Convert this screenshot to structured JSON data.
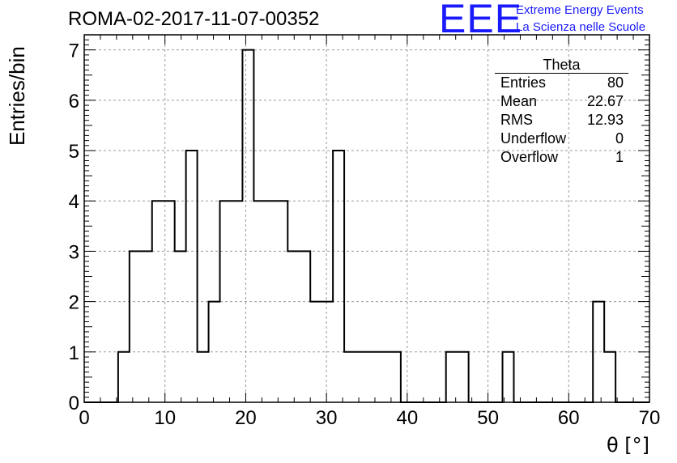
{
  "header": {
    "run_title": "ROMA-02-2017-11-07-00352"
  },
  "logo": {
    "mark": "EEE",
    "line1": "Extreme Energy Events",
    "line2": "La Scienza nelle Scuole",
    "color": "#1a1aff"
  },
  "stats": {
    "title": "Theta",
    "rows": [
      {
        "label": "Entries",
        "value": "80"
      },
      {
        "label": "Mean",
        "value": "22.67"
      },
      {
        "label": "RMS",
        "value": "12.93"
      },
      {
        "label": "Underflow",
        "value": "0"
      },
      {
        "label": "Overflow",
        "value": "1"
      }
    ]
  },
  "chart_data": {
    "type": "bar",
    "title": "ROMA-02-2017-11-07-00352",
    "xlabel": "θ [°]",
    "ylabel": "Entries/bin",
    "xlim": [
      0,
      70
    ],
    "ylim": [
      0,
      7.3
    ],
    "x_ticks": [
      0,
      10,
      20,
      30,
      40,
      50,
      60,
      70
    ],
    "y_ticks": [
      0,
      1,
      2,
      3,
      4,
      5,
      6,
      7
    ],
    "grid": true,
    "bin_width": 1.4,
    "bin_start": 0,
    "values": [
      0,
      0,
      0,
      1,
      3,
      3,
      4,
      4,
      3,
      5,
      1,
      2,
      4,
      4,
      7,
      4,
      4,
      4,
      3,
      3,
      2,
      2,
      5,
      1,
      1,
      1,
      1,
      1,
      0,
      0,
      0,
      0,
      1,
      1,
      0,
      0,
      0,
      1,
      0,
      0,
      0,
      0,
      0,
      0,
      0,
      2,
      1,
      0,
      0,
      0
    ],
    "line_color": "#000000",
    "grid_color": "#9a9a9a"
  }
}
